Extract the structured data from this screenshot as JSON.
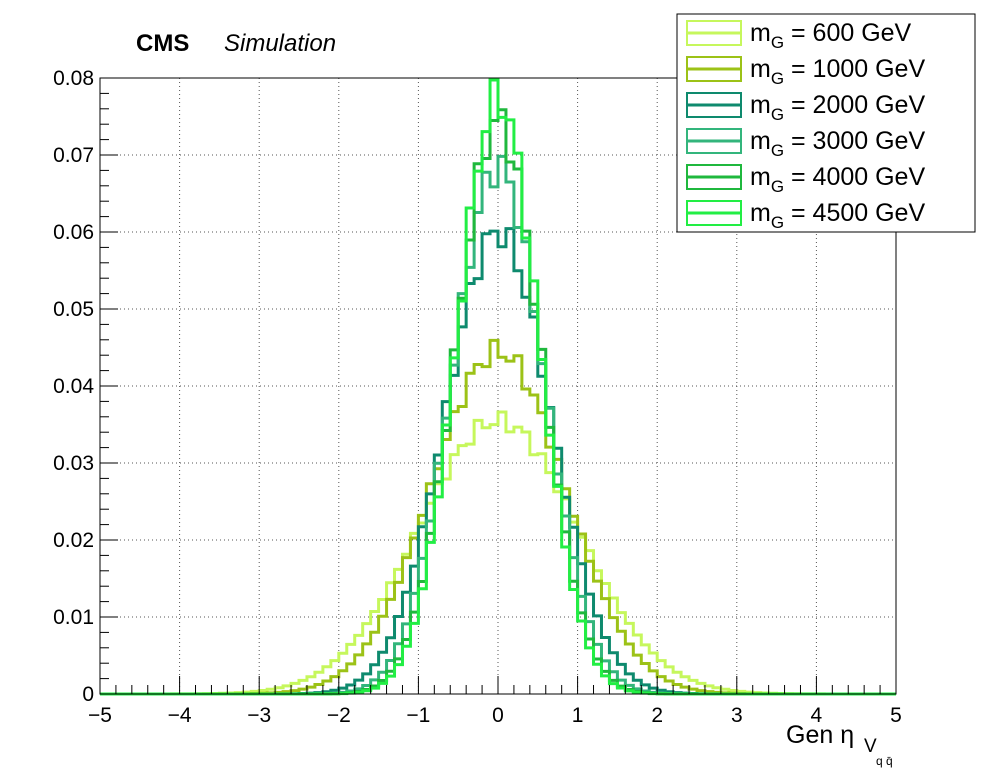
{
  "chart_data": {
    "type": "line",
    "step": true,
    "header": {
      "experiment": "CMS",
      "label": "Simulation"
    },
    "xlabel": {
      "text": "Gen η",
      "sub": "V",
      "subsub": "q q̄"
    },
    "xlim": [
      -5,
      5
    ],
    "ylim": [
      0,
      0.08
    ],
    "x_ticks": [
      -5,
      -4,
      -3,
      -2,
      -1,
      0,
      1,
      2,
      3,
      4,
      5
    ],
    "x_tick_labels": [
      "−5",
      "−4",
      "−3",
      "−2",
      "−1",
      "0",
      "1",
      "2",
      "3",
      "4",
      "5"
    ],
    "y_ticks": [
      0,
      0.01,
      0.02,
      0.03,
      0.04,
      0.05,
      0.06,
      0.07,
      0.08
    ],
    "y_tick_labels": [
      "0",
      "0.01",
      "0.02",
      "0.03",
      "0.04",
      "0.05",
      "0.06",
      "0.07",
      "0.08"
    ],
    "grid": true,
    "legend_position": "top-right",
    "bins": 100,
    "bin_width": 0.1,
    "series": [
      {
        "name": "m_G = 600 GeV",
        "label_main": "m",
        "label_sub": "G",
        "label_rest": " = 600 GeV",
        "color": "#c6f75c",
        "peak": 0.0355,
        "sigma": 1.0,
        "kurt": 1.0
      },
      {
        "name": "m_G = 1000 GeV",
        "label_main": "m",
        "label_sub": "G",
        "label_rest": " = 1000 GeV",
        "color": "#9cc217",
        "peak": 0.0445,
        "sigma": 0.84,
        "kurt": 1.0
      },
      {
        "name": "m_G = 2000 GeV",
        "label_main": "m",
        "label_sub": "G",
        "label_rest": " = 2000 GeV",
        "color": "#0e8a6e",
        "peak": 0.06,
        "sigma": 0.66,
        "kurt": 1.0
      },
      {
        "name": "m_G = 3000 GeV",
        "label_main": "m",
        "label_sub": "G",
        "label_rest": " = 3000 GeV",
        "color": "#33b57c",
        "peak": 0.0685,
        "sigma": 0.575,
        "kurt": 1.0
      },
      {
        "name": "m_G = 4000 GeV",
        "label_main": "m",
        "label_sub": "G",
        "label_rest": " = 4000 GeV",
        "color": "#1fb83d",
        "peak": 0.0745,
        "sigma": 0.53,
        "kurt": 1.0
      },
      {
        "name": "m_G = 4500 GeV",
        "label_main": "m",
        "label_sub": "G",
        "label_rest": " = 4500 GeV",
        "color": "#22ee44",
        "peak": 0.0775,
        "sigma": 0.51,
        "kurt": 1.0
      }
    ]
  }
}
